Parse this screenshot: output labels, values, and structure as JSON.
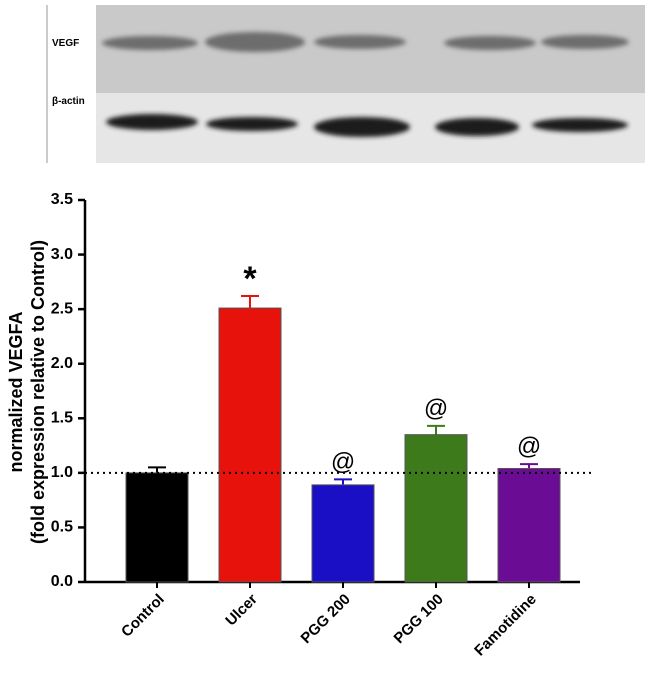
{
  "blot": {
    "labels": [
      "VEGF",
      "β-actin"
    ]
  },
  "chart_data": {
    "type": "bar",
    "ylabel": [
      "normalized VEGFA",
      "(fold expression relative to Control)"
    ],
    "categories": [
      "Control",
      "Ulcer",
      "PGG 200",
      "PGG 100",
      "Famotidine"
    ],
    "values": [
      1.0,
      2.51,
      0.89,
      1.35,
      1.04
    ],
    "errors": [
      0.05,
      0.11,
      0.05,
      0.08,
      0.04
    ],
    "annotations": [
      null,
      "*",
      "@",
      "@",
      "@"
    ],
    "colors": [
      "#000000",
      "#e8120c",
      "#1a0fc4",
      "#3c7a1c",
      "#6b0d94"
    ],
    "ylim": [
      0,
      3.5
    ],
    "yticks": [
      {
        "value": 0,
        "label": "0.0"
      },
      0.5,
      {
        "value": 1,
        "label": "1.0"
      },
      1.5,
      {
        "value": 2,
        "label": "2.0"
      },
      2.5,
      {
        "value": 3,
        "label": "3.0"
      },
      3.5
    ],
    "reference_line": 1
  }
}
